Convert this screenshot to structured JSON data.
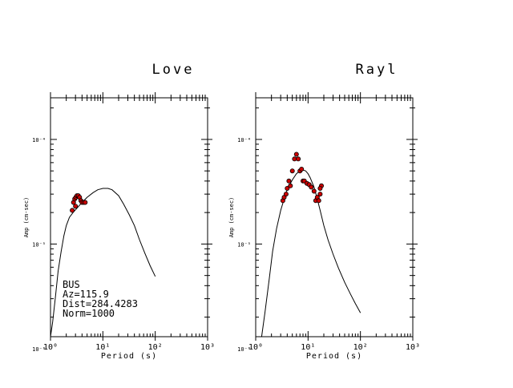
{
  "chart_data": [
    {
      "type": "scatter",
      "title": "Love",
      "xlabel": "Period (s)",
      "ylabel": "Amp (cm-sec)",
      "xscale": "log",
      "yscale": "log",
      "xlim": [
        1,
        1000
      ],
      "ylim": [
        1.3e-06,
        0.00025
      ],
      "x_ticks": [
        {
          "value": 1,
          "label": "10⁰"
        },
        {
          "value": 10,
          "label": "10¹"
        },
        {
          "value": 100,
          "label": "10²"
        },
        {
          "value": 1000,
          "label": "10³"
        }
      ],
      "y_ticks": [
        {
          "value": 1e-06,
          "label": "10⁻⁶"
        },
        {
          "value": 1e-05,
          "label": "10⁻⁵"
        },
        {
          "value": 0.0001,
          "label": "10⁻⁴"
        }
      ],
      "annotation_lines": [
        "BUS",
        "Az=115.9",
        "Dist=284.4283",
        "Norm=1000"
      ],
      "grid": false,
      "series": [
        {
          "kind": "line",
          "color": "#000000",
          "x": [
            1.0,
            1.1,
            1.25,
            1.4,
            1.6,
            1.8,
            2.0,
            2.3,
            2.7,
            3.2,
            4.0,
            5.0,
            6.5,
            8.0,
            10.0,
            12.5,
            15.0,
            20.0,
            25.0,
            32.0,
            40.0,
            50.0,
            63.0,
            80.0,
            100.0
          ],
          "y": [
            1.3e-06,
            1.8e-06,
            3.2e-06,
            5.5e-06,
            8.5e-06,
            1.2e-05,
            1.5e-05,
            1.8e-05,
            2e-05,
            2.2e-05,
            2.5e-05,
            2.8e-05,
            3.1e-05,
            3.3e-05,
            3.4e-05,
            3.4e-05,
            3.3e-05,
            2.9e-05,
            2.4e-05,
            1.9e-05,
            1.5e-05,
            1.1e-05,
            8.2e-06,
            6.2e-06,
            4.9e-06
          ]
        },
        {
          "kind": "points",
          "color": "#cc0000",
          "x": [
            2.6,
            2.75,
            2.9,
            3.05,
            3.2,
            3.4,
            3.6,
            3.8,
            4.0,
            4.3,
            4.6,
            3.0
          ],
          "y": [
            2.1e-05,
            2.5e-05,
            2.7e-05,
            2.8e-05,
            2.9e-05,
            2.9e-05,
            2.8e-05,
            2.6e-05,
            2.5e-05,
            2.5e-05,
            2.5e-05,
            2.3e-05
          ]
        }
      ]
    },
    {
      "type": "scatter",
      "title": "Rayl",
      "xlabel": "Period (s)",
      "ylabel": "Amp (cm-sec)",
      "xscale": "log",
      "yscale": "log",
      "xlim": [
        1,
        1000
      ],
      "ylim": [
        1.3e-06,
        0.00025
      ],
      "x_ticks": [
        {
          "value": 1,
          "label": "10⁰"
        },
        {
          "value": 10,
          "label": "10¹"
        },
        {
          "value": 100,
          "label": "10²"
        },
        {
          "value": 1000,
          "label": "10³"
        }
      ],
      "y_ticks": [
        {
          "value": 1e-06,
          "label": "10⁻⁶"
        },
        {
          "value": 1e-05,
          "label": "10⁻⁵"
        },
        {
          "value": 0.0001,
          "label": "10⁻⁴"
        }
      ],
      "grid": false,
      "series": [
        {
          "kind": "line",
          "color": "#000000",
          "x": [
            1.3,
            1.5,
            1.8,
            2.1,
            2.5,
            3.0,
            3.5,
            4.0,
            5.0,
            6.0,
            7.0,
            8.0,
            9.0,
            10.0,
            11.0,
            13.0,
            15.0,
            17.0,
            20.0,
            24.0,
            30.0,
            38.0,
            50.0,
            65.0,
            80.0,
            100.0
          ],
          "y": [
            1.3e-06,
            2.2e-06,
            4.5e-06,
            8.5e-06,
            1.4e-05,
            2.1e-05,
            2.7e-05,
            3.3e-05,
            4.1e-05,
            4.7e-05,
            5e-05,
            5.1e-05,
            5e-05,
            4.7e-05,
            4.3e-05,
            3.5e-05,
            2.7e-05,
            2.1e-05,
            1.5e-05,
            1.1e-05,
            8e-06,
            5.9e-06,
            4.3e-06,
            3.3e-06,
            2.7e-06,
            2.2e-06
          ]
        },
        {
          "kind": "points",
          "color": "#cc0000",
          "x": [
            3.3,
            3.5,
            3.8,
            4.0,
            4.3,
            4.6,
            5.0,
            5.5,
            6.0,
            6.5,
            7.0,
            7.5,
            8.0,
            8.5,
            9.5,
            10.5,
            11.5,
            13.0,
            14.0,
            15.0,
            16.0,
            17.0,
            18.0,
            17.0
          ],
          "y": [
            2.6e-05,
            2.8e-05,
            3e-05,
            3.4e-05,
            4e-05,
            3.6e-05,
            5e-05,
            6.5e-05,
            7.2e-05,
            6.5e-05,
            5e-05,
            5.2e-05,
            4e-05,
            4e-05,
            3.8e-05,
            3.7e-05,
            3.5e-05,
            3.2e-05,
            2.6e-05,
            2.8e-05,
            2.6e-05,
            3e-05,
            3.6e-05,
            3.4e-05
          ]
        }
      ]
    }
  ]
}
